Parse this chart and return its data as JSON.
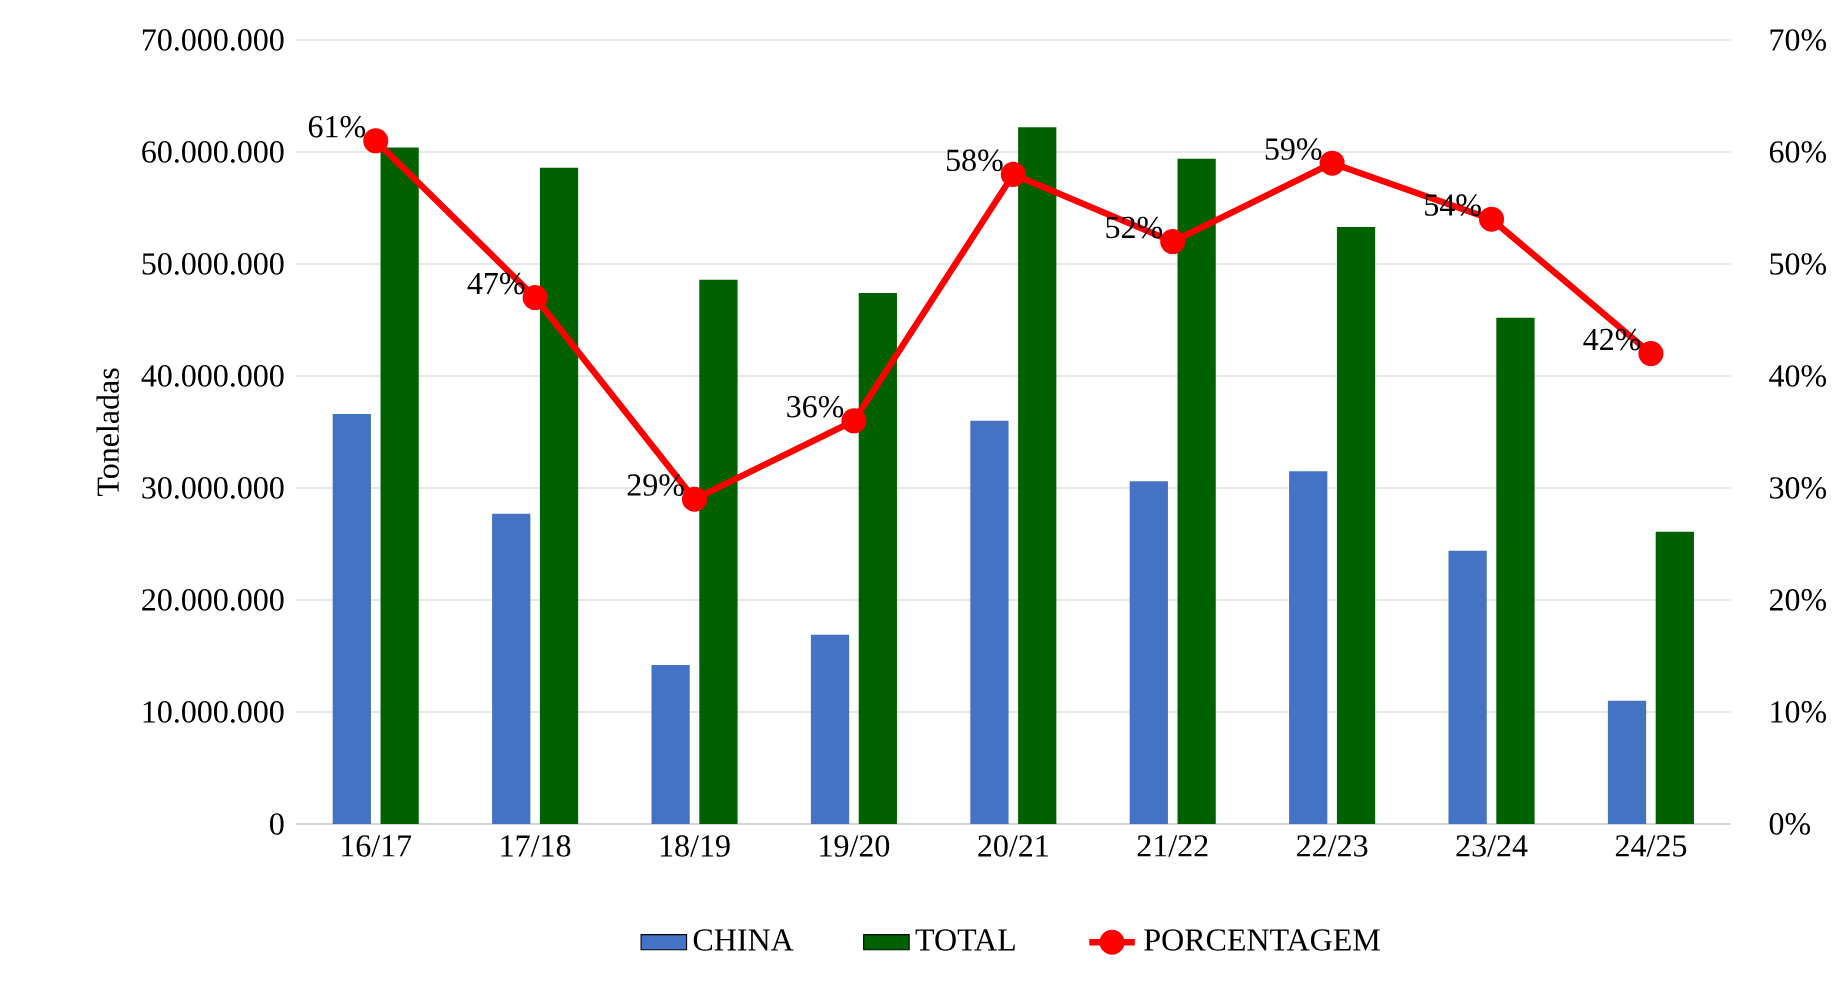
{
  "chart_data": {
    "type": "bar",
    "ylabel": "Toneladas",
    "categories": [
      "16/17",
      "17/18",
      "18/19",
      "19/20",
      "20/21",
      "21/22",
      "22/23",
      "23/24",
      "24/25"
    ],
    "series": [
      {
        "name": "CHINA",
        "color": "#4472c4",
        "values": [
          36600000,
          27700000,
          14200000,
          16900000,
          36000000,
          30600000,
          31500000,
          24400000,
          11000000
        ]
      },
      {
        "name": "TOTAL",
        "color": "#006100",
        "values": [
          60400000,
          58600000,
          48600000,
          47400000,
          62200000,
          59400000,
          53300000,
          45200000,
          26100000
        ]
      },
      {
        "name": "PORCENTAGEM",
        "type": "line",
        "axis": "y2",
        "color": "#ff0000",
        "marker": "circle",
        "values": [
          61,
          47,
          29,
          36,
          58,
          52,
          59,
          54,
          42
        ],
        "value_labels": [
          "61%",
          "47%",
          "29%",
          "36%",
          "58%",
          "52%",
          "59%",
          "54%",
          "42%"
        ]
      }
    ],
    "ylim": [
      0,
      70000000
    ],
    "yticks": [
      {
        "value": 0,
        "label": "0"
      },
      {
        "value": 10000000,
        "label": "10.000.000"
      },
      {
        "value": 20000000,
        "label": "20.000.000"
      },
      {
        "value": 30000000,
        "label": "30.000.000"
      },
      {
        "value": 40000000,
        "label": "40.000.000"
      },
      {
        "value": 50000000,
        "label": "50.000.000"
      },
      {
        "value": 60000000,
        "label": "60.000.000"
      },
      {
        "value": 70000000,
        "label": "70.000.000"
      }
    ],
    "y2lim": [
      0,
      70
    ],
    "y2ticks": [
      {
        "value": 0,
        "label": "0%"
      },
      {
        "value": 10,
        "label": "10%"
      },
      {
        "value": 20,
        "label": "20%"
      },
      {
        "value": 30,
        "label": "30%"
      },
      {
        "value": 40,
        "label": "40%"
      },
      {
        "value": 50,
        "label": "50%"
      },
      {
        "value": 60,
        "label": "60%"
      },
      {
        "value": 70,
        "label": "70%"
      }
    ],
    "grid": "y",
    "legend": "bottom"
  }
}
